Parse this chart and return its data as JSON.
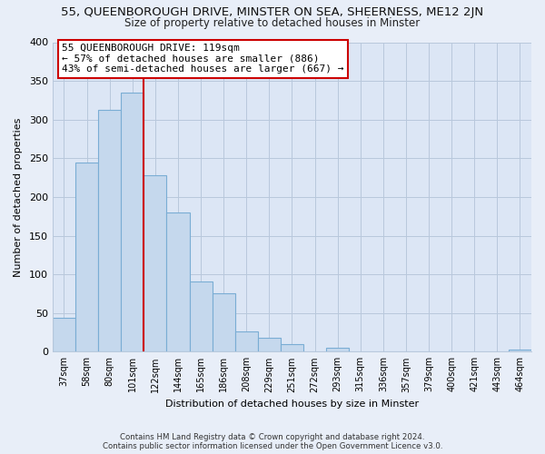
{
  "title": "55, QUEENBOROUGH DRIVE, MINSTER ON SEA, SHEERNESS, ME12 2JN",
  "subtitle": "Size of property relative to detached houses in Minster",
  "xlabel": "Distribution of detached houses by size in Minster",
  "ylabel": "Number of detached properties",
  "bar_labels": [
    "37sqm",
    "58sqm",
    "80sqm",
    "101sqm",
    "122sqm",
    "144sqm",
    "165sqm",
    "186sqm",
    "208sqm",
    "229sqm",
    "251sqm",
    "272sqm",
    "293sqm",
    "315sqm",
    "336sqm",
    "357sqm",
    "379sqm",
    "400sqm",
    "421sqm",
    "443sqm",
    "464sqm"
  ],
  "bar_heights": [
    44,
    245,
    313,
    335,
    228,
    180,
    91,
    75,
    26,
    18,
    10,
    0,
    5,
    0,
    0,
    0,
    0,
    0,
    0,
    0,
    3
  ],
  "bar_color": "#c5d8ed",
  "bar_edge_color": "#7aadd4",
  "vline_x": 4.0,
  "vline_color": "#cc0000",
  "annotation_text": "55 QUEENBOROUGH DRIVE: 119sqm\n← 57% of detached houses are smaller (886)\n43% of semi-detached houses are larger (667) →",
  "annotation_box_color": "#ffffff",
  "annotation_box_edge": "#cc0000",
  "ylim": [
    0,
    400
  ],
  "yticks": [
    0,
    50,
    100,
    150,
    200,
    250,
    300,
    350,
    400
  ],
  "footer_line1": "Contains HM Land Registry data © Crown copyright and database right 2024.",
  "footer_line2": "Contains public sector information licensed under the Open Government Licence v3.0.",
  "bg_color": "#e8eef8",
  "plot_bg_color": "#dce6f5",
  "grid_color": "#b8c8dc"
}
